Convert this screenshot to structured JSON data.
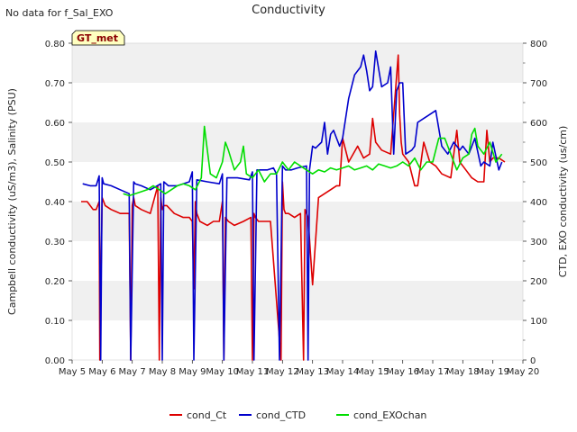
{
  "header": {
    "no_data_note": "No data for f_Sal_EXO"
  },
  "badge": {
    "label": "GT_met"
  },
  "colors": {
    "cond_Ct": "#dd0000",
    "cond_CTD": "#0000cc",
    "cond_EXOchan": "#00dd00",
    "band": "#f0f0f0",
    "badge_fill": "#ffffc0",
    "badge_text": "#8b0000"
  },
  "chart_data": {
    "type": "line",
    "title": "Conductivity",
    "ylabel_left": "Campbell conductivity (uS/m3), Salinity (PSU)",
    "ylabel_right": "CTD, EXO conductivity (us/cm)",
    "xlabel": "",
    "x_ticks": [
      "May 5",
      "May 6",
      "May 7",
      "May 8",
      "May 9",
      "May 10",
      "May 11",
      "May 12",
      "May 13",
      "May 14",
      "May 15",
      "May 16",
      "May 17",
      "May 18",
      "May 19",
      "May 20"
    ],
    "xlim": [
      5,
      20
    ],
    "ylim_left": [
      0,
      0.8
    ],
    "ylim_right": [
      0,
      800
    ],
    "yticks_left": [
      "0.00",
      "0.10",
      "0.20",
      "0.30",
      "0.40",
      "0.50",
      "0.60",
      "0.70",
      "0.80"
    ],
    "yticks_right": [
      "0",
      "100",
      "200",
      "300",
      "400",
      "500",
      "600",
      "700",
      "800"
    ],
    "grid": "horizontal bands",
    "legend": {
      "placement": "bottom-center",
      "entries": [
        "cond_Ct",
        "cond_CTD",
        "cond_EXOchan"
      ]
    },
    "series": [
      {
        "name": "cond_Ct",
        "axis": "left",
        "x_unit": "day of May",
        "x": [
          5.3,
          5.5,
          5.7,
          5.8,
          5.9,
          5.92,
          6.0,
          6.05,
          6.1,
          6.3,
          6.6,
          6.9,
          6.95,
          7.0,
          7.05,
          7.1,
          7.3,
          7.6,
          7.85,
          7.9,
          7.95,
          8.0,
          8.05,
          8.15,
          8.4,
          8.7,
          8.9,
          9.0,
          9.05,
          9.1,
          9.15,
          9.2,
          9.25,
          9.5,
          9.7,
          9.9,
          10.0,
          10.05,
          10.1,
          10.2,
          10.4,
          10.7,
          10.95,
          11.0,
          11.05,
          11.1,
          11.2,
          11.4,
          11.6,
          11.95,
          12.0,
          12.05,
          12.1,
          12.2,
          12.4,
          12.6,
          12.7,
          12.75,
          12.8,
          12.85,
          13.0,
          13.2,
          13.4,
          13.6,
          13.8,
          13.9,
          14.0,
          14.2,
          14.5,
          14.7,
          14.9,
          15.0,
          15.1,
          15.3,
          15.6,
          15.85,
          15.9,
          15.95,
          16.0,
          16.2,
          16.4,
          16.5,
          16.7,
          16.9,
          17.1,
          17.3,
          17.6,
          17.8,
          17.9,
          18.1,
          18.3,
          18.5,
          18.7,
          18.8,
          18.9,
          19.0,
          19.2,
          19.4
        ],
        "y": [
          0.4,
          0.4,
          0.38,
          0.38,
          0.4,
          0.0,
          0.41,
          0.4,
          0.39,
          0.38,
          0.37,
          0.37,
          0.0,
          0.39,
          0.41,
          0.39,
          0.38,
          0.37,
          0.44,
          0.0,
          0.41,
          0.38,
          0.39,
          0.39,
          0.37,
          0.36,
          0.36,
          0.35,
          0.18,
          0.4,
          0.37,
          0.36,
          0.35,
          0.34,
          0.35,
          0.35,
          0.4,
          0.0,
          0.36,
          0.35,
          0.34,
          0.35,
          0.36,
          0.0,
          0.37,
          0.36,
          0.35,
          0.35,
          0.35,
          0.0,
          0.45,
          0.38,
          0.37,
          0.37,
          0.36,
          0.37,
          0.0,
          0.38,
          0.37,
          0.36,
          0.19,
          0.41,
          0.42,
          0.43,
          0.44,
          0.44,
          0.56,
          0.5,
          0.54,
          0.51,
          0.52,
          0.61,
          0.55,
          0.53,
          0.52,
          0.77,
          0.62,
          0.55,
          0.52,
          0.5,
          0.44,
          0.44,
          0.55,
          0.5,
          0.49,
          0.47,
          0.46,
          0.58,
          0.5,
          0.48,
          0.46,
          0.45,
          0.45,
          0.58,
          0.5,
          0.51,
          0.51,
          0.5
        ]
      },
      {
        "name": "cond_CTD",
        "axis": "right",
        "x_unit": "day of May",
        "x": [
          5.35,
          5.6,
          5.8,
          5.9,
          5.95,
          6.0,
          6.05,
          6.3,
          6.6,
          6.9,
          6.95,
          7.05,
          7.1,
          7.3,
          7.6,
          7.95,
          8.0,
          8.05,
          8.2,
          8.5,
          8.9,
          9.0,
          9.05,
          9.15,
          9.5,
          9.9,
          10.0,
          10.05,
          10.15,
          10.5,
          10.9,
          11.0,
          11.05,
          11.15,
          11.5,
          11.7,
          11.8,
          11.9,
          12.0,
          12.1,
          12.3,
          12.5,
          12.8,
          12.85,
          12.9,
          13.0,
          13.1,
          13.3,
          13.4,
          13.5,
          13.6,
          13.7,
          13.8,
          13.9,
          14.0,
          14.2,
          14.4,
          14.6,
          14.7,
          14.8,
          14.9,
          15.0,
          15.1,
          15.3,
          15.5,
          15.6,
          15.7,
          15.8,
          15.9,
          16.0,
          16.1,
          16.3,
          16.4,
          16.5,
          16.7,
          16.9,
          17.1,
          17.3,
          17.5,
          17.7,
          17.9,
          18.0,
          18.2,
          18.4,
          18.6,
          18.7,
          18.9,
          19.0,
          19.2,
          19.3
        ],
        "y": [
          445,
          440,
          440,
          465,
          0,
          460,
          445,
          440,
          430,
          420,
          0,
          450,
          445,
          440,
          430,
          445,
          0,
          450,
          440,
          440,
          450,
          475,
          0,
          455,
          450,
          445,
          470,
          0,
          460,
          460,
          455,
          475,
          0,
          480,
          480,
          485,
          470,
          0,
          490,
          480,
          480,
          485,
          490,
          0,
          480,
          540,
          535,
          550,
          600,
          520,
          570,
          580,
          560,
          540,
          560,
          660,
          720,
          740,
          770,
          730,
          680,
          690,
          780,
          690,
          700,
          740,
          520,
          680,
          700,
          700,
          520,
          530,
          540,
          600,
          610,
          620,
          630,
          540,
          520,
          550,
          530,
          540,
          520,
          560,
          490,
          500,
          490,
          550,
          480,
          500
        ]
      },
      {
        "name": "cond_EXOchan",
        "axis": "right",
        "x_unit": "day of May",
        "x": [
          6.7,
          6.9,
          7.1,
          7.3,
          7.5,
          7.7,
          7.9,
          8.1,
          8.3,
          8.5,
          8.7,
          8.9,
          9.1,
          9.3,
          9.4,
          9.45,
          9.6,
          9.8,
          10.0,
          10.1,
          10.2,
          10.4,
          10.6,
          10.7,
          10.8,
          11.0,
          11.2,
          11.4,
          11.6,
          11.8,
          12.0,
          12.2,
          12.4,
          12.6,
          12.8,
          13.0,
          13.2,
          13.4,
          13.6,
          13.8,
          14.0,
          14.2,
          14.4,
          14.6,
          14.8,
          15.0,
          15.2,
          15.4,
          15.6,
          15.8,
          16.0,
          16.2,
          16.4,
          16.6,
          16.8,
          17.0,
          17.2,
          17.4,
          17.6,
          17.8,
          18.0,
          18.2,
          18.3,
          18.4,
          18.5,
          18.7,
          18.9,
          19.1,
          19.3
        ],
        "y": [
          420,
          415,
          420,
          425,
          430,
          440,
          430,
          420,
          430,
          440,
          445,
          440,
          430,
          460,
          590,
          560,
          470,
          460,
          500,
          550,
          530,
          480,
          500,
          540,
          470,
          460,
          480,
          450,
          470,
          470,
          500,
          480,
          500,
          490,
          480,
          470,
          480,
          475,
          485,
          480,
          485,
          490,
          480,
          485,
          490,
          480,
          495,
          490,
          485,
          490,
          500,
          490,
          510,
          480,
          500,
          500,
          560,
          560,
          520,
          480,
          510,
          520,
          570,
          585,
          540,
          520,
          550,
          500,
          520
        ]
      }
    ]
  }
}
